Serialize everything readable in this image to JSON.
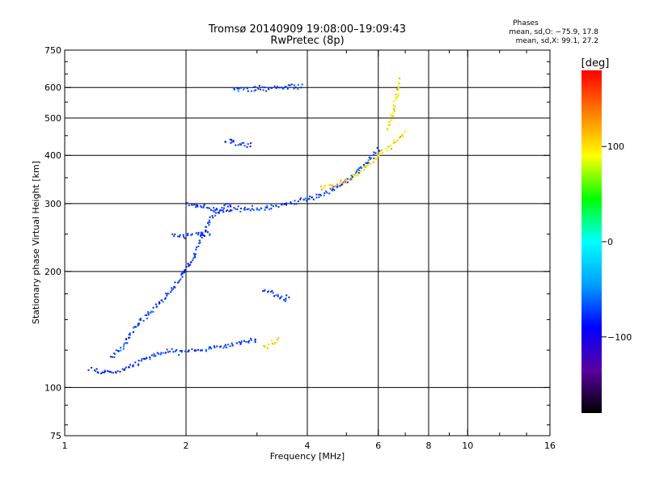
{
  "header": {
    "title_line1": "Tromsø 20140909 19:08:00–19:09:43",
    "title_line2": "RwPretec (8p)",
    "phase_heading": "Phases",
    "phase_o": "mean, sd,O: −75.9, 17.8",
    "phase_x": "mean, sd,X:  99.1, 27.2"
  },
  "colorbar": {
    "unit_label": "[deg]",
    "ticks": [
      {
        "value": 100,
        "label": "100"
      },
      {
        "value": 0,
        "label": "0"
      },
      {
        "value": -100,
        "label": "−100"
      }
    ],
    "range": [
      -180,
      180
    ],
    "colors": [
      "#000000",
      "#5a00a0",
      "#0000ff",
      "#00a0ff",
      "#00ffff",
      "#00ff00",
      "#ffff00",
      "#ff8000",
      "#ff0000"
    ]
  },
  "chart_data": {
    "type": "scatter",
    "title": "Tromsø 20140909 19:08:00–19:09:43",
    "subtitle": "RwPretec (8p)",
    "xlabel": "Frequency [MHz]",
    "ylabel": "Stationary phase Virtual Height [km]",
    "x_scale": "log",
    "y_scale": "log",
    "xlim": [
      1,
      16
    ],
    "ylim": [
      75,
      750
    ],
    "x_ticks": [
      1,
      2,
      4,
      6,
      8,
      10,
      16
    ],
    "y_ticks": [
      75,
      100,
      200,
      300,
      400,
      500,
      600,
      750
    ],
    "x_grid": [
      2,
      4,
      6,
      8,
      10
    ],
    "y_grid": [
      100,
      200,
      300,
      400,
      500,
      600
    ],
    "grid": true,
    "color_variable": "phase [deg]",
    "series": [
      {
        "name": "O",
        "phase_mean": -75.9,
        "phase_sd": 17.8,
        "traces": [
          {
            "points": [
              [
                1.15,
                112
              ],
              [
                1.25,
                110
              ],
              [
                1.35,
                111
              ],
              [
                1.45,
                114
              ],
              [
                1.55,
                118
              ],
              [
                1.65,
                122
              ],
              [
                1.75,
                124
              ],
              [
                1.85,
                125
              ],
              [
                2.0,
                125
              ],
              [
                2.2,
                126
              ],
              [
                2.5,
                128
              ],
              [
                2.8,
                132
              ],
              [
                3.0,
                135
              ]
            ]
          },
          {
            "points": [
              [
                1.3,
                120
              ],
              [
                1.4,
                130
              ],
              [
                1.5,
                145
              ],
              [
                1.6,
                155
              ],
              [
                1.7,
                165
              ],
              [
                1.8,
                175
              ],
              [
                1.9,
                190
              ],
              [
                2.0,
                205
              ],
              [
                2.1,
                225
              ],
              [
                2.2,
                250
              ],
              [
                2.3,
                275
              ],
              [
                2.45,
                295
              ],
              [
                2.6,
                300
              ]
            ]
          },
          {
            "points": [
              [
                2.0,
                300
              ],
              [
                2.3,
                292
              ],
              [
                2.6,
                290
              ],
              [
                3.0,
                292
              ],
              [
                3.4,
                298
              ],
              [
                3.8,
                305
              ],
              [
                4.2,
                315
              ],
              [
                4.6,
                328
              ],
              [
                5.0,
                345
              ],
              [
                5.4,
                370
              ],
              [
                5.8,
                400
              ],
              [
                6.0,
                420
              ]
            ]
          },
          {
            "points": [
              [
                2.6,
                600
              ],
              [
                2.9,
                598
              ],
              [
                3.2,
                602
              ],
              [
                3.5,
                605
              ],
              [
                3.9,
                612
              ]
            ]
          },
          {
            "points": [
              [
                2.5,
                440
              ],
              [
                2.7,
                430
              ],
              [
                2.9,
                425
              ]
            ]
          },
          {
            "points": [
              [
                1.85,
                250
              ],
              [
                2.0,
                250
              ],
              [
                2.15,
                252
              ],
              [
                2.3,
                250
              ]
            ]
          },
          {
            "points": [
              [
                3.1,
                180
              ],
              [
                3.3,
                175
              ],
              [
                3.5,
                170
              ],
              [
                3.6,
                175
              ]
            ]
          }
        ]
      },
      {
        "name": "X",
        "phase_mean": 99.1,
        "phase_sd": 27.2,
        "traces": [
          {
            "points": [
              [
                4.3,
                330
              ],
              [
                4.6,
                335
              ],
              [
                5.0,
                345
              ],
              [
                5.4,
                365
              ],
              [
                5.8,
                390
              ],
              [
                6.2,
                415
              ],
              [
                6.6,
                435
              ],
              [
                7.0,
                465
              ]
            ]
          },
          {
            "points": [
              [
                6.3,
                470
              ],
              [
                6.5,
                520
              ],
              [
                6.6,
                560
              ],
              [
                6.7,
                600
              ],
              [
                6.8,
                640
              ]
            ]
          },
          {
            "points": [
              [
                3.1,
                128
              ],
              [
                3.25,
                131
              ],
              [
                3.4,
                135
              ]
            ]
          }
        ]
      }
    ]
  }
}
